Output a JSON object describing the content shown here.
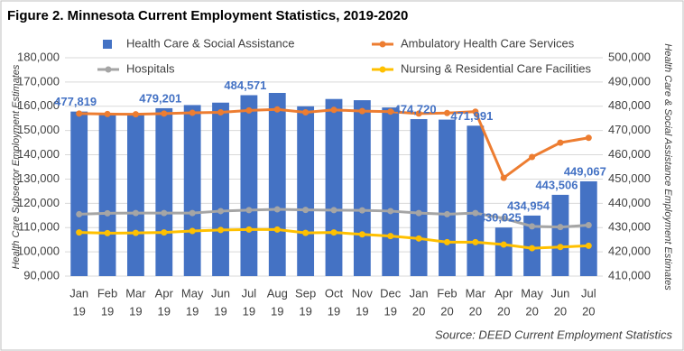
{
  "chart_data": {
    "type": "combo",
    "title": "Figure 2. Minnesota Current Employment Statistics, 2019-2020",
    "source": "Source: DEED Current Employment Statistics",
    "y_label": "Health Care Subsector Employment Estimates",
    "y2_label": "Health Care & Social Assistance Employment Estimates",
    "categories": [
      [
        "Jan",
        "19"
      ],
      [
        "Feb",
        "19"
      ],
      [
        "Mar",
        "19"
      ],
      [
        "Apr",
        "19"
      ],
      [
        "May",
        "19"
      ],
      [
        "Jun",
        "19"
      ],
      [
        "Jul",
        "19"
      ],
      [
        "Aug",
        "19"
      ],
      [
        "Sep",
        "19"
      ],
      [
        "Oct",
        "19"
      ],
      [
        "Nov",
        "19"
      ],
      [
        "Dec",
        "19"
      ],
      [
        "Jan",
        "20"
      ],
      [
        "Feb",
        "20"
      ],
      [
        "Mar",
        "20"
      ],
      [
        "Apr",
        "20"
      ],
      [
        "May",
        "20"
      ],
      [
        "Jun",
        "20"
      ],
      [
        "Jul",
        "20"
      ]
    ],
    "ylim": [
      90000,
      180000
    ],
    "yticks": [
      {
        "value": 90000,
        "label": "90,000"
      },
      {
        "value": 100000,
        "label": "100,000"
      },
      {
        "value": 110000,
        "label": "110,000"
      },
      {
        "value": 120000,
        "label": "120,000"
      },
      {
        "value": 130000,
        "label": "130,000"
      },
      {
        "value": 140000,
        "label": "140,000"
      },
      {
        "value": 150000,
        "label": "150,000"
      },
      {
        "value": 160000,
        "label": "160,000"
      },
      {
        "value": 170000,
        "label": "170,000"
      },
      {
        "value": 180000,
        "label": "180,000"
      }
    ],
    "y2lim": [
      410000,
      500000
    ],
    "y2ticks": [
      {
        "value": 410000,
        "label": "410,000"
      },
      {
        "value": 420000,
        "label": "420,000"
      },
      {
        "value": 430000,
        "label": "430,000"
      },
      {
        "value": 440000,
        "label": "440,000"
      },
      {
        "value": 450000,
        "label": "450,000"
      },
      {
        "value": 460000,
        "label": "460,000"
      },
      {
        "value": 470000,
        "label": "470,000"
      },
      {
        "value": 480000,
        "label": "480,000"
      },
      {
        "value": 490000,
        "label": "490,000"
      },
      {
        "value": 500000,
        "label": "500,000"
      }
    ],
    "grid": true,
    "series": [
      {
        "name": "Health Care & Social Assistance",
        "type": "bar",
        "axis": "y2",
        "color": "#4472c4",
        "values": [
          477819,
          476950,
          476500,
          479201,
          480500,
          481500,
          484571,
          485500,
          480000,
          483000,
          482500,
          479500,
          474720,
          474500,
          471991,
          430025,
          434954,
          443506,
          449067
        ],
        "value_labels": [
          "477,819",
          null,
          null,
          "479,201",
          null,
          null,
          "484,571",
          null,
          null,
          null,
          null,
          null,
          "474,720",
          null,
          "471,991",
          "430,025",
          "434,954",
          "443,506",
          "449,067"
        ]
      },
      {
        "name": "Ambulatory Health Care Services",
        "type": "line",
        "color": "#ed7d31",
        "values": [
          157000,
          156800,
          156700,
          157000,
          157300,
          157500,
          158300,
          158700,
          157500,
          158500,
          158000,
          157800,
          157000,
          157200,
          157800,
          130500,
          139100,
          145000,
          147000
        ]
      },
      {
        "name": "Hospitals",
        "type": "line",
        "color": "#a5a5a5",
        "values": [
          115500,
          115900,
          116000,
          116000,
          116000,
          116800,
          117200,
          117500,
          117300,
          117200,
          117100,
          116800,
          116000,
          115500,
          116000,
          113800,
          110500,
          110200,
          111000
        ]
      },
      {
        "name": "Nursing & Residential Care Facilities",
        "type": "line",
        "color": "#ffc000",
        "values": [
          108000,
          107700,
          107800,
          108000,
          108600,
          109000,
          109200,
          109200,
          107800,
          108000,
          107200,
          106500,
          105500,
          104000,
          104000,
          103000,
          101500,
          102000,
          102500
        ]
      }
    ]
  }
}
